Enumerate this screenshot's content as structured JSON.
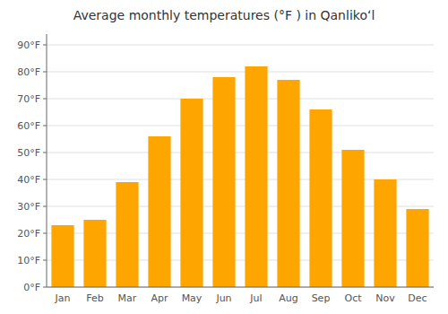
{
  "chart_data": {
    "type": "bar",
    "title": "Average monthly temperatures (°F ) in Qanlikoʻl",
    "categories": [
      "Jan",
      "Feb",
      "Mar",
      "Apr",
      "May",
      "Jun",
      "Jul",
      "Aug",
      "Sep",
      "Oct",
      "Nov",
      "Dec"
    ],
    "values": [
      23,
      25,
      39,
      56,
      70,
      78,
      82,
      77,
      66,
      51,
      40,
      29
    ],
    "color": "#FFA500",
    "ylim": [
      0,
      94
    ],
    "yticks": [
      {
        "value": 0,
        "label": "0°F"
      },
      {
        "value": 10,
        "label": "10°F"
      },
      {
        "value": 20,
        "label": "20°F"
      },
      {
        "value": 30,
        "label": "30°F"
      },
      {
        "value": 40,
        "label": "40°F"
      },
      {
        "value": 50,
        "label": "50°F"
      },
      {
        "value": 60,
        "label": "60°F"
      },
      {
        "value": 70,
        "label": "70°F"
      },
      {
        "value": 80,
        "label": "80°F"
      },
      {
        "value": 90,
        "label": "90°F"
      }
    ],
    "grid": true
  }
}
